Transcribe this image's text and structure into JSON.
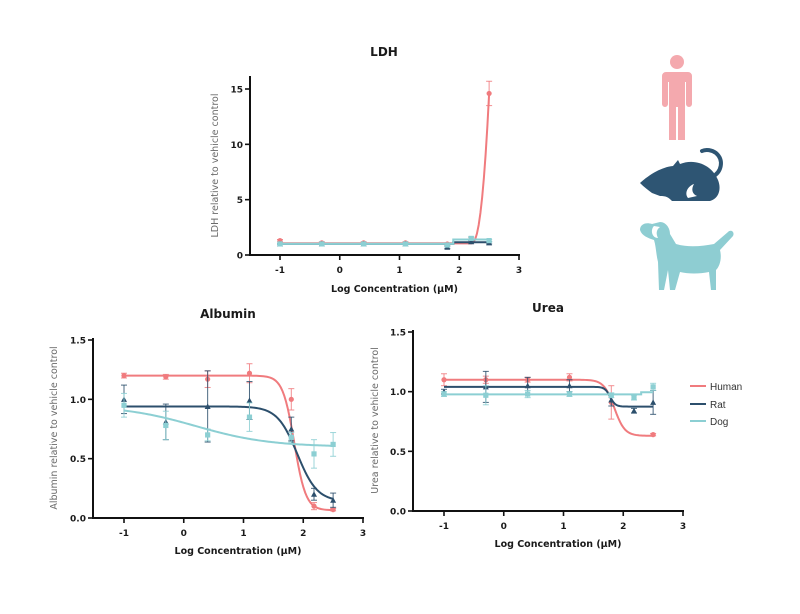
{
  "colors": {
    "Human": "#f07b7e",
    "Rat": "#2c4f6c",
    "Dog": "#8ccfd3",
    "human_icon": "#f4a9ae",
    "rat_icon": "#2e5573",
    "dog_icon": "#8ecdd2",
    "axis": "#111111"
  },
  "icons": [
    "human-icon",
    "rat-icon",
    "dog-icon"
  ],
  "legend": {
    "placement": "right",
    "entries": [
      "Human",
      "Rat",
      "Dog"
    ]
  },
  "chart_data": [
    {
      "id": "ldh",
      "type": "line",
      "title": "LDH",
      "xlabel": "Log Concentration (μM)",
      "ylabel": "LDH relative to vehicle control",
      "xlim": [
        -1.5,
        3
      ],
      "ylim": [
        0,
        16
      ],
      "xticks": [
        -1,
        0,
        1,
        2,
        3
      ],
      "yticks": [
        0,
        5,
        10,
        15
      ],
      "ytick_labels": [
        "0",
        "5",
        "10",
        "15"
      ],
      "grid": false,
      "x": [
        -1,
        -0.3,
        0.4,
        1.1,
        1.8,
        2.2,
        2.5
      ],
      "series": [
        {
          "name": "Human",
          "marker": "circle",
          "values": [
            1.3,
            1.1,
            1.1,
            1.1,
            1.0,
            1.4,
            14.6
          ],
          "errors": [
            0.1,
            0.1,
            0.1,
            0.1,
            0.1,
            0.2,
            1.1
          ],
          "fit": "sigmoid-up"
        },
        {
          "name": "Rat",
          "marker": "triangle",
          "values": [
            1.0,
            1.0,
            1.0,
            1.0,
            0.7,
            1.2,
            1.1
          ],
          "errors": [
            0.05,
            0.05,
            0.05,
            0.05,
            0.1,
            0.1,
            0.1
          ],
          "fit": "step"
        },
        {
          "name": "Dog",
          "marker": "square",
          "values": [
            1.0,
            1.0,
            1.0,
            1.0,
            0.9,
            1.5,
            1.3
          ],
          "errors": [
            0.05,
            0.05,
            0.05,
            0.05,
            0.1,
            0.15,
            0.1
          ],
          "fit": "step"
        }
      ]
    },
    {
      "id": "albumin",
      "type": "line",
      "title": "Albumin",
      "xlabel": "Log Concentration (μM)",
      "ylabel": "Albumin relative to vehicle control",
      "xlim": [
        -1.5,
        3
      ],
      "ylim": [
        0,
        1.5
      ],
      "xticks": [
        -1,
        0,
        1,
        2,
        3
      ],
      "yticks": [
        0,
        0.5,
        1.0,
        1.5
      ],
      "ytick_labels": [
        "0.0",
        "0.5",
        "1.0",
        "1.5"
      ],
      "grid": false,
      "x": [
        -1,
        -0.3,
        0.4,
        1.1,
        1.8,
        2.18,
        2.5
      ],
      "series": [
        {
          "name": "Human",
          "marker": "circle",
          "values": [
            1.2,
            1.19,
            1.17,
            1.22,
            1.0,
            0.1,
            0.07
          ],
          "errors": [
            0.02,
            0.02,
            0.07,
            0.08,
            0.09,
            0.03,
            0.01
          ],
          "fit": "sigmoid-down",
          "fit_params": {
            "top": 1.2,
            "bottom": 0.065,
            "ec50": 1.85,
            "hill": 4.5
          }
        },
        {
          "name": "Rat",
          "marker": "triangle",
          "values": [
            1.0,
            0.81,
            0.94,
            0.99,
            0.75,
            0.2,
            0.15
          ],
          "errors": [
            0.12,
            0.15,
            0.3,
            0.16,
            0.1,
            0.05,
            0.06
          ],
          "fit": "sigmoid-down",
          "fit_params": {
            "top": 0.94,
            "bottom": 0.14,
            "ec50": 1.9,
            "hill": 2.6
          }
        },
        {
          "name": "Dog",
          "marker": "square",
          "values": [
            0.95,
            0.78,
            0.7,
            0.85,
            0.68,
            0.54,
            0.62
          ],
          "errors": [
            0.1,
            0.12,
            0.05,
            0.12,
            0.04,
            0.12,
            0.1
          ],
          "fit": "decay",
          "fit_params": {
            "top": 0.95,
            "bottom": 0.6,
            "ec50": 0.2,
            "hill": 0.7
          }
        }
      ]
    },
    {
      "id": "urea",
      "type": "line",
      "title": "Urea",
      "xlabel": "Log Concentration (μM)",
      "ylabel": "Urea relative to vehicle control",
      "xlim": [
        -1.5,
        3
      ],
      "ylim": [
        0,
        1.5
      ],
      "xticks": [
        -1,
        0,
        1,
        2,
        3
      ],
      "yticks": [
        0,
        0.5,
        1.0,
        1.5
      ],
      "ytick_labels": [
        "0.0",
        "0.5",
        "1.0",
        "1.5"
      ],
      "grid": false,
      "x": [
        -1,
        -0.3,
        0.4,
        1.1,
        1.8,
        2.18,
        2.5
      ],
      "series": [
        {
          "name": "Human",
          "marker": "circle",
          "values": [
            1.1,
            1.1,
            1.1,
            1.12,
            0.91,
            null,
            0.64
          ],
          "errors": [
            0.05,
            0.03,
            0.02,
            0.03,
            0.14,
            null,
            0.01
          ],
          "fit": "sigmoid-down",
          "fit_params": {
            "top": 1.1,
            "bottom": 0.63,
            "ec50": 1.85,
            "hill": 5
          }
        },
        {
          "name": "Rat",
          "marker": "triangle",
          "values": [
            1.0,
            1.04,
            1.05,
            1.05,
            0.93,
            0.84,
            0.91
          ],
          "errors": [
            0.02,
            0.13,
            0.07,
            0.05,
            0.05,
            0.02,
            0.1
          ],
          "fit": "sigmoid-down",
          "fit_params": {
            "top": 1.04,
            "bottom": 0.875,
            "ec50": 1.78,
            "hill": 10
          }
        },
        {
          "name": "Dog",
          "marker": "square",
          "values": [
            0.98,
            0.97,
            0.98,
            0.98,
            0.97,
            0.95,
            1.04
          ],
          "errors": [
            0.02,
            0.08,
            0.03,
            0.02,
            0.02,
            0.02,
            0.03
          ],
          "fit": "step"
        }
      ]
    }
  ]
}
